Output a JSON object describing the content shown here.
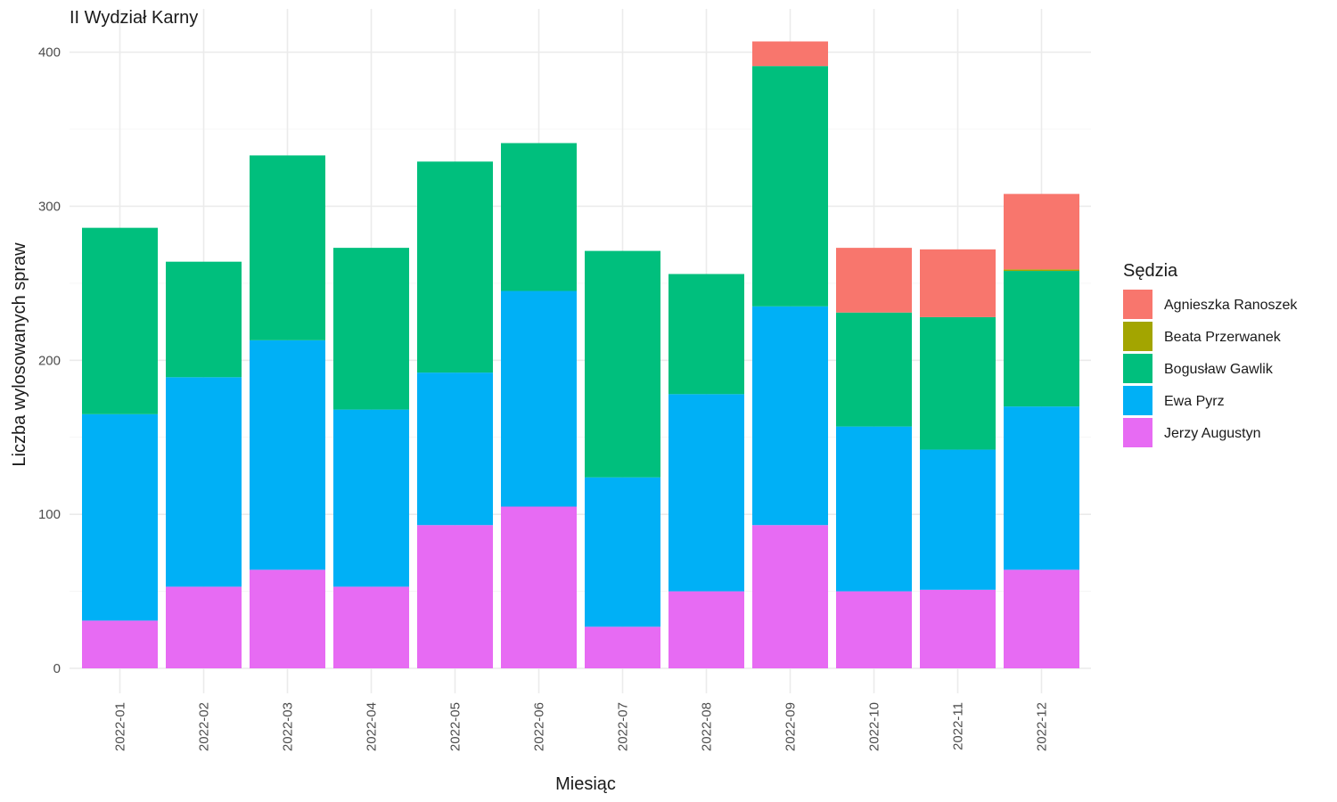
{
  "chart_data": {
    "type": "bar",
    "stacked": true,
    "title": "II Wydział Karny",
    "xlabel": "Miesiąc",
    "ylabel": "Liczba wylosowanych spraw",
    "ylim": [
      0,
      410
    ],
    "yticks": [
      0,
      100,
      200,
      300,
      400
    ],
    "grid": true,
    "legend_title": "Sędzia",
    "legend_position": "right",
    "categories": [
      "2022-01",
      "2022-02",
      "2022-03",
      "2022-04",
      "2022-05",
      "2022-06",
      "2022-07",
      "2022-08",
      "2022-09",
      "2022-10",
      "2022-11",
      "2022-12"
    ],
    "series": [
      {
        "name": "Jerzy Augustyn",
        "color": "#E76BF3",
        "values": [
          31,
          53,
          64,
          53,
          93,
          105,
          27,
          50,
          93,
          50,
          51,
          64
        ]
      },
      {
        "name": "Ewa Pyrz",
        "color": "#00B0F6",
        "values": [
          134,
          136,
          149,
          115,
          99,
          140,
          97,
          128,
          142,
          107,
          91,
          106
        ]
      },
      {
        "name": "Bogusław Gawlik",
        "color": "#00BF7D",
        "values": [
          121,
          75,
          120,
          105,
          137,
          96,
          147,
          78,
          156,
          74,
          86,
          88
        ]
      },
      {
        "name": "Beata Przerwanek",
        "color": "#A3A500",
        "values": [
          0,
          0,
          0,
          0,
          0,
          0,
          0,
          0,
          0,
          0,
          0,
          1
        ]
      },
      {
        "name": "Agnieszka Ranoszek",
        "color": "#F8766D",
        "values": [
          0,
          0,
          0,
          0,
          0,
          0,
          0,
          0,
          16,
          42,
          44,
          49
        ]
      }
    ],
    "legend_order": [
      "Agnieszka Ranoszek",
      "Beata Przerwanek",
      "Bogusław Gawlik",
      "Ewa Pyrz",
      "Jerzy Augustyn"
    ]
  }
}
